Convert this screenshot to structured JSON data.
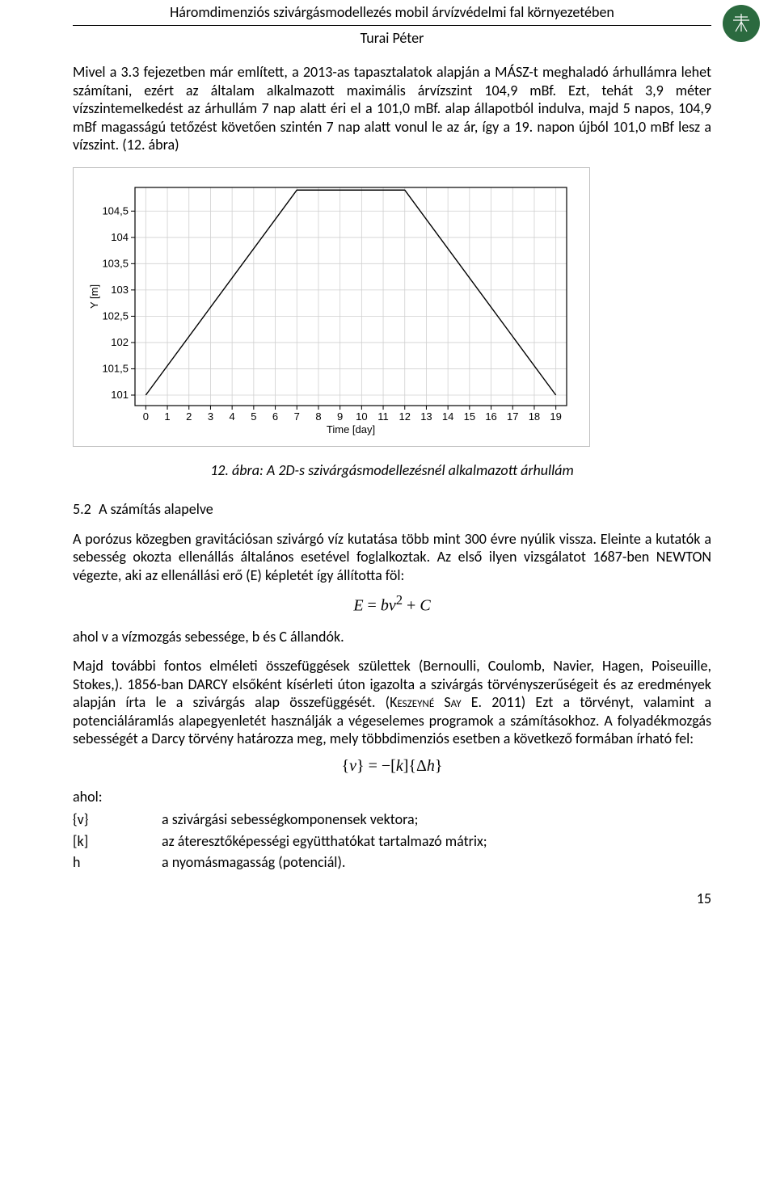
{
  "header": {
    "title": "Háromdimenziós szivárgásmodellezés mobil árvízvédelmi fal környezetében",
    "author": "Turai Péter"
  },
  "para1": "Mivel a 3.3 fejezetben már említett, a 2013-as tapasztalatok alapján a MÁSZ-t meghaladó árhullámra lehet számítani, ezért az általam alkalmazott maximális árvízszint 104,9 mBf. Ezt, tehát 3,9 méter vízszintemelkedést az árhullám 7 nap alatt éri el a 101,0 mBf. alap állapotból indulva, majd 5 napos, 104,9 mBf magasságú tetőzést követően szintén 7 nap alatt vonul le az ár, így a 19. napon újból 101,0 mBf lesz a vízszint. (12. ábra)",
  "fig_caption": "12. ábra: A 2D-s szivárgásmodellezésnél alkalmazott árhullám",
  "section": {
    "num": "5.2",
    "title": "A számítás alapelve"
  },
  "para2": "A porózus közegben gravitációsan szivárgó víz kutatása több mint 300 évre nyúlik vissza. Eleinte a kutatók a sebesség okozta ellenállás általános esetével foglalkoztak. Az első ilyen vizsgálatot 1687-ben NEWTON végezte, aki az ellenállási erő (E) képletét így állította föl:",
  "eq1_html": "<span>E</span> <span class=\"rm\">=</span> <span>b</span><span>v</span><sup><span class=\"rm\">2</span></sup> <span class=\"rm\">+</span> <span>C</span>",
  "para3": "ahol v a vízmozgás sebessége, b és C állandók.",
  "para4_pre": "Majd további fontos elméleti összefüggések születtek (Bernoulli, Coulomb, Navier, Hagen, Poiseuille, Stokes,). 1856-ban DARCY elsőként kísérleti úton igazolta a szivárgás törvényszerűségeit és az eredmények alapján írta le a szivárgás alap összefüggését. (",
  "para4_sc": "Keszeyné Say E.",
  "para4_post": " 2011) Ezt a törvényt, valamint a potenciáláramlás alapegyenletét használják a végeselemes programok a számításokhoz. A folyadékmozgás sebességét a Darcy törvény határozza meg, mely többdimenziós esetben a következő formában írható fel:",
  "eq2_html": "<span class=\"rm\">{</span><span>v</span><span class=\"rm\">}</span> <span class=\"rm\">= −[</span><span>k</span><span class=\"rm\">]{</span><span class=\"rm\">Δ</span><span>h</span><span class=\"rm\">}</span>",
  "ahol": "ahol:",
  "defs": [
    {
      "sym": "{v}",
      "txt": "a szivárgási sebességkomponensek vektora;"
    },
    {
      "sym": "[k]",
      "txt": "az áteresztőképességi együtthatókat tartalmazó mátrix;"
    },
    {
      "sym": "h",
      "txt": "a nyomásmagasság (potenciál)."
    }
  ],
  "page_number": "15",
  "chart": {
    "type": "line",
    "background_color": "#ffffff",
    "border_color": "#bfbfbf",
    "plot_border_color": "#000000",
    "grid_color": "#d0d0d0",
    "line_color": "#000000",
    "line_width": 1.4,
    "axis_font_size": 13,
    "x": {
      "label": "Time [day]",
      "ticks": [
        0,
        1,
        2,
        3,
        4,
        5,
        6,
        7,
        8,
        9,
        10,
        11,
        12,
        13,
        14,
        15,
        16,
        17,
        18,
        19
      ],
      "min": -0.5,
      "max": 19.5
    },
    "y": {
      "label": "Y [m]",
      "ticks": [
        101,
        101.5,
        102,
        102.5,
        103,
        103.5,
        104,
        104.5
      ],
      "tick_labels": [
        "101",
        "101,5",
        "102",
        "102,5",
        "103",
        "103,5",
        "104",
        "104,5"
      ],
      "min": 100.8,
      "max": 104.95
    },
    "series": [
      {
        "x": 0,
        "y": 101.0
      },
      {
        "x": 7,
        "y": 104.9
      },
      {
        "x": 12,
        "y": 104.9
      },
      {
        "x": 19,
        "y": 101.0
      }
    ]
  }
}
